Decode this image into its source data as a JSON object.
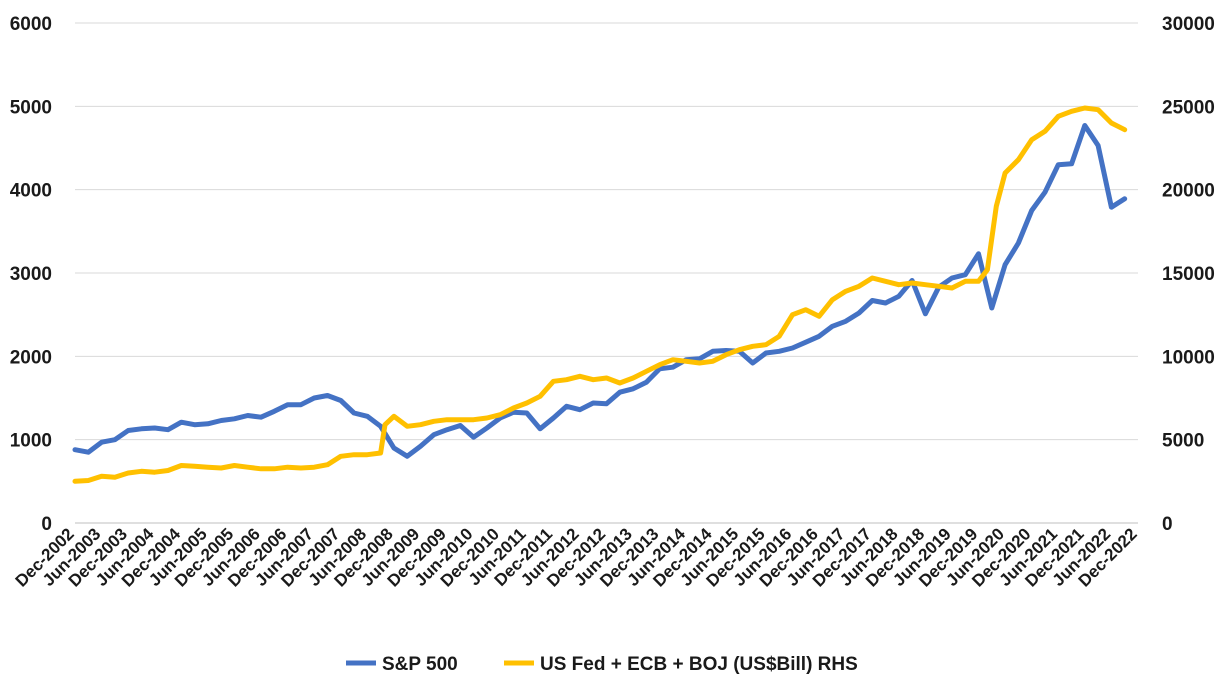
{
  "chart_data": {
    "type": "line",
    "title": "",
    "xlabel": "",
    "ylabel": "",
    "y2label": "",
    "ylim": [
      0,
      6000
    ],
    "y2lim": [
      0,
      30000
    ],
    "yticks": [
      "0",
      "1000",
      "2000",
      "3000",
      "4000",
      "5000",
      "6000"
    ],
    "y2ticks": [
      "0",
      "5000",
      "10000",
      "15000",
      "20000",
      "25000",
      "30000"
    ],
    "grid": true,
    "legend_position": "bottom",
    "x_labels": [
      "Dec-2002",
      "Jun-2003",
      "Dec-2003",
      "Jun-2004",
      "Dec-2004",
      "Jun-2005",
      "Dec-2005",
      "Jun-2006",
      "Dec-2006",
      "Jun-2007",
      "Dec-2007",
      "Jun-2008",
      "Dec-2008",
      "Jun-2009",
      "Dec-2009",
      "Jun-2010",
      "Dec-2010",
      "Jun-2011",
      "Dec-2011",
      "Jun-2012",
      "Dec-2012",
      "Jun-2013",
      "Dec-2013",
      "Jun-2014",
      "Dec-2014",
      "Jun-2015",
      "Dec-2015",
      "Jun-2016",
      "Dec-2016",
      "Jun-2017",
      "Dec-2017",
      "Jun-2018",
      "Dec-2018",
      "Jun-2019",
      "Dec-2019",
      "Jun-2020",
      "Dec-2020",
      "Jun-2021",
      "Dec-2021",
      "Jun-2022",
      "Dec-2022"
    ],
    "series": [
      {
        "name": "S&P 500",
        "axis": "left",
        "color": "#4472C4",
        "x": [
          "Dec-2002",
          "Mar-2003",
          "Jun-2003",
          "Sep-2003",
          "Dec-2003",
          "Mar-2004",
          "Jun-2004",
          "Sep-2004",
          "Dec-2004",
          "Mar-2005",
          "Jun-2005",
          "Sep-2005",
          "Dec-2005",
          "Mar-2006",
          "Jun-2006",
          "Sep-2006",
          "Dec-2006",
          "Mar-2007",
          "Jun-2007",
          "Sep-2007",
          "Dec-2007",
          "Mar-2008",
          "Jun-2008",
          "Sep-2008",
          "Dec-2008",
          "Mar-2009",
          "Jun-2009",
          "Sep-2009",
          "Dec-2009",
          "Mar-2010",
          "Jun-2010",
          "Sep-2010",
          "Dec-2010",
          "Mar-2011",
          "Jun-2011",
          "Sep-2011",
          "Dec-2011",
          "Mar-2012",
          "Jun-2012",
          "Sep-2012",
          "Dec-2012",
          "Mar-2013",
          "Jun-2013",
          "Sep-2013",
          "Dec-2013",
          "Mar-2014",
          "Jun-2014",
          "Sep-2014",
          "Dec-2014",
          "Mar-2015",
          "Jun-2015",
          "Sep-2015",
          "Dec-2015",
          "Mar-2016",
          "Jun-2016",
          "Sep-2016",
          "Dec-2016",
          "Mar-2017",
          "Jun-2017",
          "Sep-2017",
          "Dec-2017",
          "Mar-2018",
          "Jun-2018",
          "Sep-2018",
          "Dec-2018",
          "Mar-2019",
          "Jun-2019",
          "Sep-2019",
          "Dec-2019",
          "Mar-2020",
          "Jun-2020",
          "Sep-2020",
          "Dec-2020",
          "Mar-2021",
          "Jun-2021",
          "Sep-2021",
          "Dec-2021",
          "Mar-2022",
          "Jun-2022",
          "Sep-2022"
        ],
        "values": [
          880,
          850,
          970,
          1000,
          1110,
          1130,
          1140,
          1120,
          1210,
          1180,
          1190,
          1230,
          1250,
          1290,
          1270,
          1340,
          1420,
          1420,
          1500,
          1530,
          1470,
          1320,
          1280,
          1160,
          900,
          800,
          920,
          1060,
          1120,
          1170,
          1030,
          1140,
          1260,
          1330,
          1320,
          1130,
          1260,
          1400,
          1360,
          1440,
          1430,
          1570,
          1610,
          1690,
          1850,
          1870,
          1960,
          1970,
          2060,
          2070,
          2060,
          1920,
          2040,
          2060,
          2100,
          2170,
          2240,
          2360,
          2420,
          2520,
          2670,
          2640,
          2720,
          2910,
          2510,
          2830,
          2940,
          2980,
          3230,
          2580,
          3100,
          3360,
          3750,
          3970,
          4300,
          4310,
          4770,
          4530,
          3790,
          3890
        ]
      },
      {
        "name": "US Fed + ECB + BOJ (US$Bill) RHS",
        "axis": "right",
        "color": "#FFC000",
        "x": [
          "Dec-2002",
          "Mar-2003",
          "Jun-2003",
          "Sep-2003",
          "Dec-2003",
          "Mar-2004",
          "Jun-2004",
          "Sep-2004",
          "Dec-2004",
          "Mar-2005",
          "Jun-2005",
          "Sep-2005",
          "Dec-2005",
          "Mar-2006",
          "Jun-2006",
          "Sep-2006",
          "Dec-2006",
          "Mar-2007",
          "Jun-2007",
          "Sep-2007",
          "Dec-2007",
          "Mar-2008",
          "Jun-2008",
          "Sep-2008",
          "Oct-2008",
          "Dec-2008",
          "Mar-2009",
          "Jun-2009",
          "Sep-2009",
          "Dec-2009",
          "Mar-2010",
          "Jun-2010",
          "Sep-2010",
          "Dec-2010",
          "Mar-2011",
          "Jun-2011",
          "Sep-2011",
          "Dec-2011",
          "Mar-2012",
          "Jun-2012",
          "Sep-2012",
          "Dec-2012",
          "Mar-2013",
          "Jun-2013",
          "Sep-2013",
          "Dec-2013",
          "Mar-2014",
          "Jun-2014",
          "Sep-2014",
          "Dec-2014",
          "Mar-2015",
          "Jun-2015",
          "Sep-2015",
          "Dec-2015",
          "Mar-2016",
          "Jun-2016",
          "Sep-2016",
          "Dec-2016",
          "Mar-2017",
          "Jun-2017",
          "Sep-2017",
          "Dec-2017",
          "Mar-2018",
          "Jun-2018",
          "Sep-2018",
          "Dec-2018",
          "Mar-2019",
          "Jun-2019",
          "Sep-2019",
          "Dec-2019",
          "Feb-2020",
          "Apr-2020",
          "Jun-2020",
          "Sep-2020",
          "Dec-2020",
          "Mar-2021",
          "Jun-2021",
          "Sep-2021",
          "Dec-2021",
          "Mar-2022",
          "Jun-2022",
          "Sep-2022"
        ],
        "values": [
          2500,
          2550,
          2800,
          2750,
          3000,
          3100,
          3050,
          3150,
          3450,
          3400,
          3350,
          3300,
          3450,
          3350,
          3250,
          3250,
          3350,
          3300,
          3350,
          3500,
          4000,
          4100,
          4100,
          4200,
          5900,
          6400,
          5800,
          5900,
          6100,
          6200,
          6200,
          6200,
          6300,
          6500,
          6900,
          7200,
          7600,
          8500,
          8600,
          8800,
          8600,
          8700,
          8400,
          8700,
          9100,
          9500,
          9800,
          9700,
          9600,
          9700,
          10100,
          10400,
          10600,
          10700,
          11200,
          12500,
          12800,
          12400,
          13400,
          13900,
          14200,
          14700,
          14500,
          14300,
          14400,
          14300,
          14200,
          14100,
          14500,
          14500,
          15200,
          19000,
          21000,
          21800,
          23000,
          23500,
          24400,
          24700,
          24900,
          24800,
          24000,
          23600
        ]
      }
    ]
  }
}
